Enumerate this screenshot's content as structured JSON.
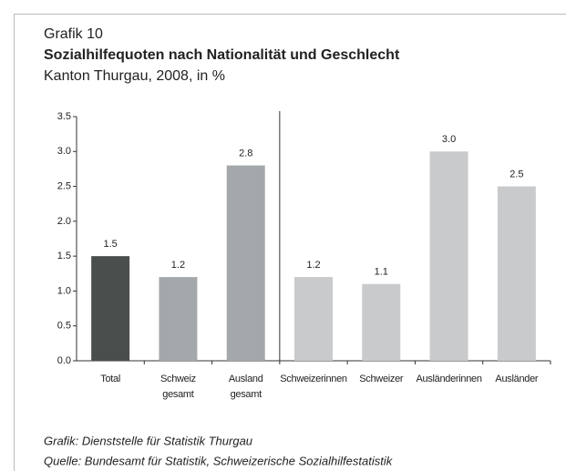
{
  "chart_data": {
    "type": "bar",
    "kicker": "Grafik 10",
    "title": "Sozialhilfequoten nach Nationalität und Geschlecht",
    "subtitle": "Kanton Thurgau, 2008, in %",
    "categories": [
      "Total",
      "Schweiz\ngesamt",
      "Ausland\ngesamt",
      "Schweizerinnen",
      "Schweizer",
      "Ausländerinnen",
      "Ausländer"
    ],
    "values": [
      1.5,
      1.2,
      2.8,
      1.2,
      1.1,
      3.0,
      2.5
    ],
    "value_labels": [
      "1.5",
      "1.2",
      "2.8",
      "1.2",
      "1.1",
      "3.0",
      "2.5"
    ],
    "colors": [
      "#4a4f4d",
      "#a5a8aa",
      "#a5a8aa",
      "#c9cacc",
      "#c9cacc",
      "#c9cacc",
      "#c9cacc"
    ],
    "ylim": [
      0,
      3.5
    ],
    "yticks": [
      {
        "value": 0,
        "label": "0.0"
      },
      {
        "value": 0.5,
        "label": "0.5"
      },
      {
        "value": 1,
        "label": "1.0"
      },
      {
        "value": 1.5,
        "label": "1.5"
      },
      {
        "value": 2,
        "label": "2.0"
      },
      {
        "value": 2.5,
        "label": "2.5"
      },
      {
        "value": 3,
        "label": "3.0"
      },
      {
        "value": 3.5,
        "label": "3.5"
      }
    ],
    "notes": [
      "Grafik: Dienststelle für Statistik Thurgau",
      "Quelle: Bundesamt für Statistik, Schweizerische Sozialhilfestatistik"
    ]
  }
}
